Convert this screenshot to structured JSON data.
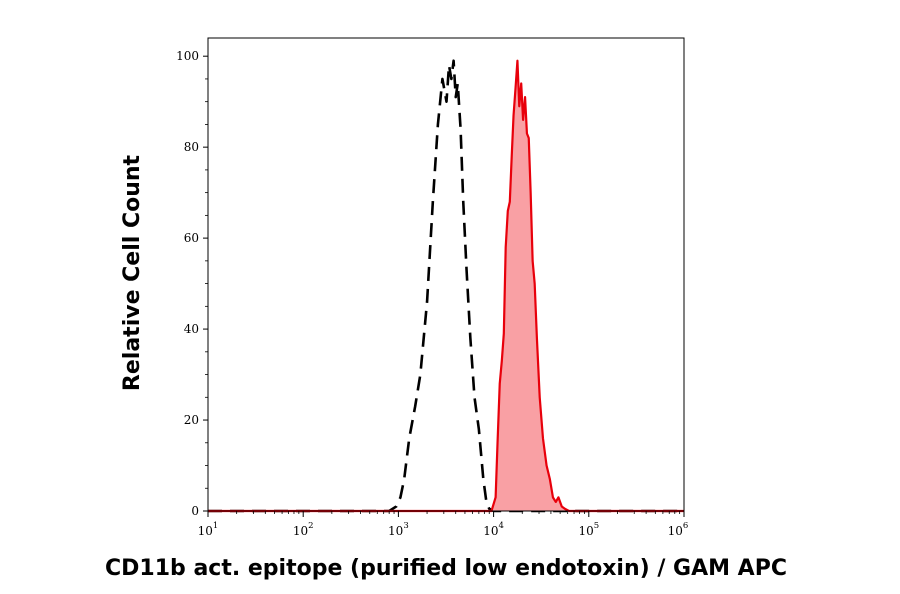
{
  "chart_data": {
    "type": "area",
    "title": "",
    "xlabel": "CD11b act. epitope (purified low endotoxin) / GAM APC",
    "ylabel": "Relative Cell Count",
    "xscale": "log",
    "xlim": [
      10,
      1000000
    ],
    "ylim": [
      0,
      104
    ],
    "grid": false,
    "legend": "none",
    "x_ticks": [
      {
        "base": "10",
        "exp": "1",
        "value": 10
      },
      {
        "base": "10",
        "exp": "2",
        "value": 100
      },
      {
        "base": "10",
        "exp": "3",
        "value": 1000
      },
      {
        "base": "10",
        "exp": "4",
        "value": 10000
      },
      {
        "base": "10",
        "exp": "5",
        "value": 100000
      },
      {
        "base": "10",
        "exp": "6",
        "value": 1000000
      }
    ],
    "y_ticks": [
      {
        "label": "0",
        "value": 0
      },
      {
        "label": "20",
        "value": 20
      },
      {
        "label": "40",
        "value": 40
      },
      {
        "label": "60",
        "value": 60
      },
      {
        "label": "80",
        "value": 80
      },
      {
        "label": "100",
        "value": 100
      }
    ],
    "series": [
      {
        "style": "dashed-black-outline",
        "color": "#000000",
        "x": [
          10,
          800,
          950,
          1050,
          1150,
          1300,
          1500,
          1700,
          2000,
          2300,
          2600,
          2900,
          3200,
          3400,
          3600,
          3800,
          4000,
          4200,
          4500,
          4800,
          5200,
          5700,
          6300,
          7000,
          7800,
          8400,
          9000,
          10000,
          12000,
          1000000
        ],
        "y": [
          0,
          0,
          1,
          3,
          7,
          16,
          23,
          30,
          46,
          68,
          85,
          95,
          90,
          98,
          95,
          99,
          91,
          94,
          84,
          68,
          53,
          38,
          25,
          18,
          7,
          2,
          0.5,
          0,
          0,
          0
        ]
      },
      {
        "style": "filled-red",
        "color": "#e8000b",
        "fill": "#f9a0a4",
        "x": [
          10,
          9500,
          10500,
          11000,
          11600,
          12200,
          12800,
          13400,
          14100,
          14800,
          15500,
          16200,
          17000,
          17800,
          18600,
          19500,
          20400,
          21400,
          22400,
          23400,
          24500,
          25700,
          27000,
          28500,
          30500,
          33000,
          36000,
          39000,
          42000,
          45000,
          48000,
          52000,
          56000,
          62000,
          1000000
        ],
        "y": [
          0,
          0,
          3,
          15,
          28,
          33,
          39,
          58,
          66,
          68,
          78,
          87,
          93,
          99,
          89,
          94,
          86,
          91,
          83,
          82,
          70,
          55,
          50,
          38,
          25,
          16,
          10,
          7,
          3,
          2,
          3,
          1,
          0.5,
          0,
          0
        ]
      }
    ]
  }
}
